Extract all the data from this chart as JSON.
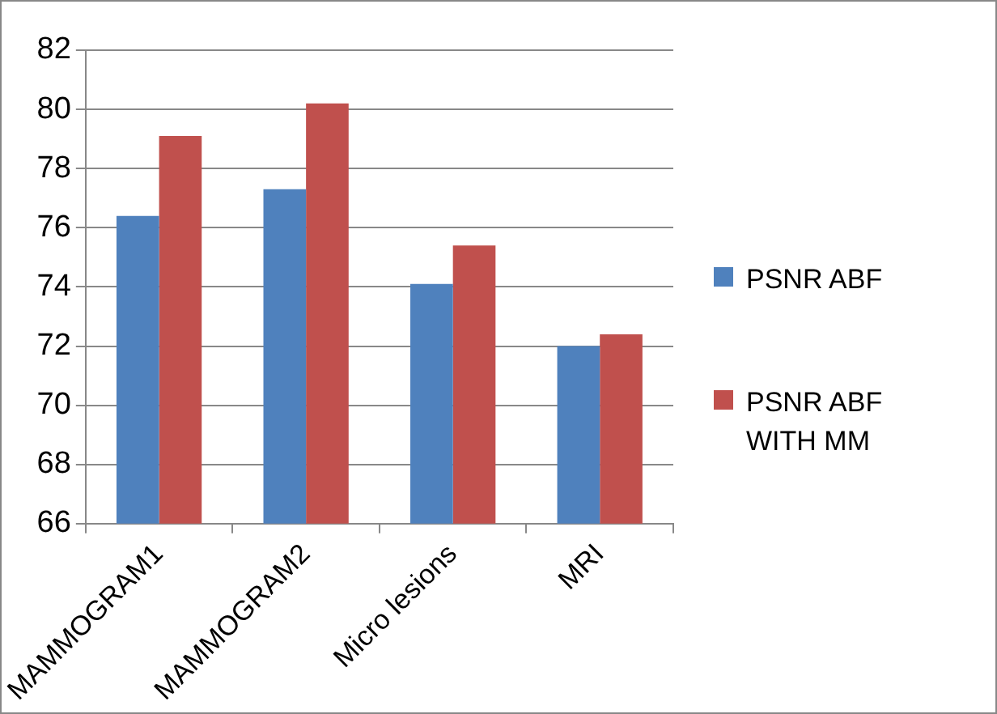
{
  "chart_data": {
    "type": "bar",
    "categories": [
      "MAMMOGRAM1",
      "MAMMOGRAM2",
      "Micro lesions",
      "MRI"
    ],
    "series": [
      {
        "name": "PSNR ABF",
        "color": "#4f81bd",
        "values": [
          76.4,
          77.3,
          74.1,
          72.0
        ]
      },
      {
        "name": "PSNR ABF WITH MM",
        "color": "#c0504d",
        "values": [
          79.1,
          80.2,
          75.4,
          72.4
        ]
      }
    ],
    "ylim": [
      66,
      82
    ],
    "yticks": [
      66,
      68,
      70,
      72,
      74,
      76,
      78,
      80,
      82
    ],
    "grid": "y",
    "legend": "right"
  }
}
